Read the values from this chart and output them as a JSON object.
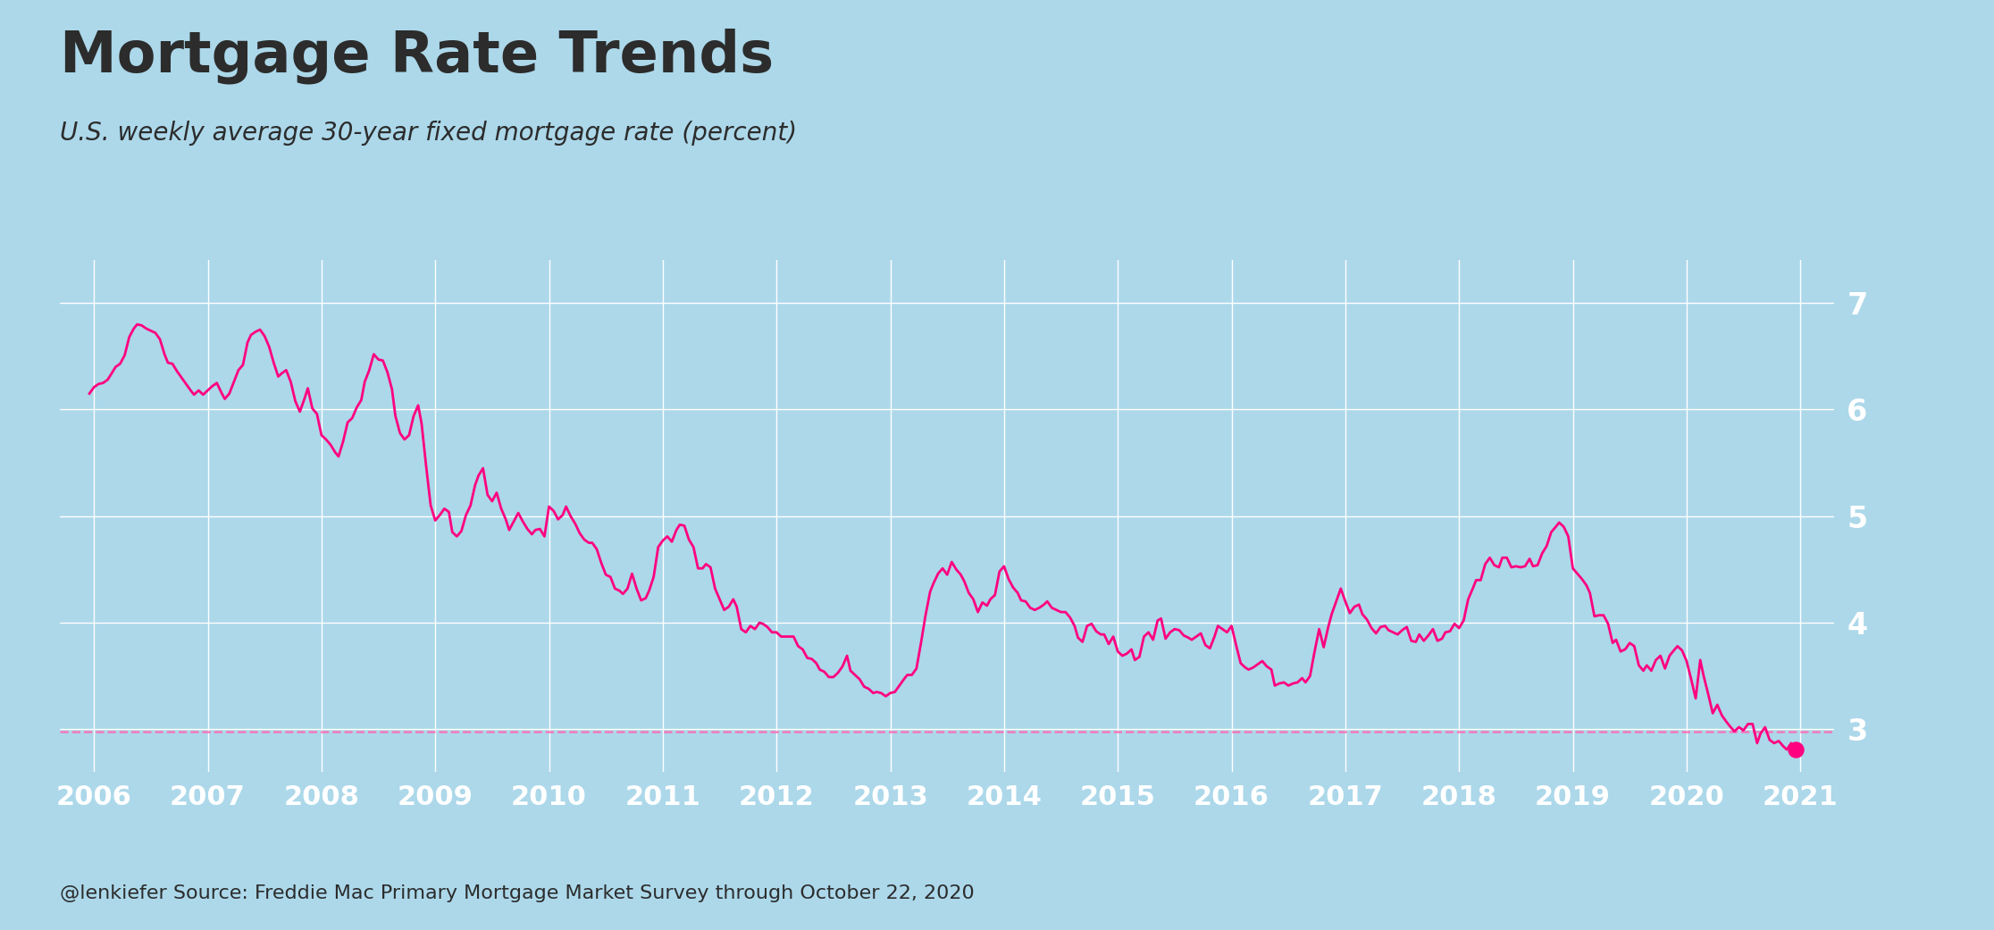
{
  "title": "Mortgage Rate Trends",
  "subtitle": "U.S. weekly average 30-year fixed mortgage rate (percent)",
  "caption": "@lenkiefer Source: Freddie Mac Primary Mortgage Market Survey through October 22, 2020",
  "background_color": "#ACD8EA",
  "plot_bg_color": "#ACD8EA",
  "line_color": "#FF0080",
  "dashed_color": "#FF69B4",
  "grid_color": "#FFFFFF",
  "title_color": "#2C2C2C",
  "axis_label_color": "#FFFFFF",
  "dashed_y": 2.98,
  "ylim": [
    2.6,
    7.4
  ],
  "xlim_start": 2005.7,
  "xlim_end": 2021.3,
  "yticks": [
    3,
    4,
    5,
    6,
    7
  ],
  "xticks": [
    2006,
    2007,
    2008,
    2009,
    2010,
    2011,
    2012,
    2013,
    2014,
    2015,
    2016,
    2017,
    2018,
    2019,
    2020,
    2021
  ],
  "pmms_data": [
    [
      2005.96,
      6.15
    ],
    [
      2006.0,
      6.21
    ],
    [
      2006.04,
      6.24
    ],
    [
      2006.08,
      6.25
    ],
    [
      2006.12,
      6.28
    ],
    [
      2006.15,
      6.33
    ],
    [
      2006.19,
      6.4
    ],
    [
      2006.23,
      6.43
    ],
    [
      2006.27,
      6.51
    ],
    [
      2006.31,
      6.68
    ],
    [
      2006.35,
      6.76
    ],
    [
      2006.38,
      6.8
    ],
    [
      2006.42,
      6.79
    ],
    [
      2006.46,
      6.76
    ],
    [
      2006.5,
      6.74
    ],
    [
      2006.54,
      6.72
    ],
    [
      2006.58,
      6.66
    ],
    [
      2006.62,
      6.52
    ],
    [
      2006.65,
      6.44
    ],
    [
      2006.69,
      6.43
    ],
    [
      2006.73,
      6.36
    ],
    [
      2006.77,
      6.3
    ],
    [
      2006.81,
      6.24
    ],
    [
      2006.85,
      6.18
    ],
    [
      2006.88,
      6.14
    ],
    [
      2006.92,
      6.18
    ],
    [
      2006.96,
      6.14
    ],
    [
      2007.0,
      6.18
    ],
    [
      2007.04,
      6.22
    ],
    [
      2007.08,
      6.25
    ],
    [
      2007.12,
      6.16
    ],
    [
      2007.15,
      6.1
    ],
    [
      2007.19,
      6.15
    ],
    [
      2007.23,
      6.26
    ],
    [
      2007.27,
      6.37
    ],
    [
      2007.31,
      6.42
    ],
    [
      2007.35,
      6.63
    ],
    [
      2007.38,
      6.7
    ],
    [
      2007.42,
      6.73
    ],
    [
      2007.46,
      6.75
    ],
    [
      2007.5,
      6.69
    ],
    [
      2007.54,
      6.59
    ],
    [
      2007.58,
      6.44
    ],
    [
      2007.62,
      6.31
    ],
    [
      2007.65,
      6.34
    ],
    [
      2007.69,
      6.37
    ],
    [
      2007.73,
      6.26
    ],
    [
      2007.77,
      6.08
    ],
    [
      2007.81,
      5.98
    ],
    [
      2007.85,
      6.1
    ],
    [
      2007.88,
      6.2
    ],
    [
      2007.92,
      6.01
    ],
    [
      2007.96,
      5.96
    ],
    [
      2008.0,
      5.76
    ],
    [
      2008.04,
      5.72
    ],
    [
      2008.08,
      5.67
    ],
    [
      2008.12,
      5.6
    ],
    [
      2008.15,
      5.56
    ],
    [
      2008.19,
      5.7
    ],
    [
      2008.23,
      5.88
    ],
    [
      2008.27,
      5.92
    ],
    [
      2008.31,
      6.02
    ],
    [
      2008.35,
      6.09
    ],
    [
      2008.38,
      6.26
    ],
    [
      2008.42,
      6.37
    ],
    [
      2008.46,
      6.52
    ],
    [
      2008.5,
      6.47
    ],
    [
      2008.54,
      6.46
    ],
    [
      2008.58,
      6.35
    ],
    [
      2008.62,
      6.19
    ],
    [
      2008.65,
      5.94
    ],
    [
      2008.69,
      5.78
    ],
    [
      2008.73,
      5.72
    ],
    [
      2008.77,
      5.76
    ],
    [
      2008.81,
      5.94
    ],
    [
      2008.85,
      6.04
    ],
    [
      2008.88,
      5.87
    ],
    [
      2008.92,
      5.47
    ],
    [
      2008.96,
      5.1
    ],
    [
      2009.0,
      4.96
    ],
    [
      2009.04,
      5.01
    ],
    [
      2009.08,
      5.07
    ],
    [
      2009.12,
      5.04
    ],
    [
      2009.15,
      4.85
    ],
    [
      2009.19,
      4.81
    ],
    [
      2009.23,
      4.86
    ],
    [
      2009.27,
      5.01
    ],
    [
      2009.31,
      5.1
    ],
    [
      2009.35,
      5.29
    ],
    [
      2009.38,
      5.38
    ],
    [
      2009.42,
      5.45
    ],
    [
      2009.46,
      5.2
    ],
    [
      2009.5,
      5.14
    ],
    [
      2009.54,
      5.22
    ],
    [
      2009.58,
      5.07
    ],
    [
      2009.62,
      4.97
    ],
    [
      2009.65,
      4.87
    ],
    [
      2009.69,
      4.95
    ],
    [
      2009.73,
      5.03
    ],
    [
      2009.77,
      4.95
    ],
    [
      2009.81,
      4.88
    ],
    [
      2009.85,
      4.83
    ],
    [
      2009.88,
      4.87
    ],
    [
      2009.92,
      4.88
    ],
    [
      2009.96,
      4.81
    ],
    [
      2010.0,
      5.09
    ],
    [
      2010.04,
      5.05
    ],
    [
      2010.08,
      4.97
    ],
    [
      2010.12,
      5.01
    ],
    [
      2010.15,
      5.09
    ],
    [
      2010.19,
      5.0
    ],
    [
      2010.23,
      4.93
    ],
    [
      2010.27,
      4.84
    ],
    [
      2010.31,
      4.78
    ],
    [
      2010.35,
      4.75
    ],
    [
      2010.38,
      4.75
    ],
    [
      2010.42,
      4.69
    ],
    [
      2010.46,
      4.56
    ],
    [
      2010.5,
      4.45
    ],
    [
      2010.54,
      4.43
    ],
    [
      2010.58,
      4.32
    ],
    [
      2010.62,
      4.3
    ],
    [
      2010.65,
      4.27
    ],
    [
      2010.69,
      4.32
    ],
    [
      2010.73,
      4.46
    ],
    [
      2010.77,
      4.32
    ],
    [
      2010.81,
      4.21
    ],
    [
      2010.85,
      4.23
    ],
    [
      2010.88,
      4.3
    ],
    [
      2010.92,
      4.43
    ],
    [
      2010.96,
      4.71
    ],
    [
      2011.0,
      4.77
    ],
    [
      2011.04,
      4.81
    ],
    [
      2011.08,
      4.76
    ],
    [
      2011.12,
      4.87
    ],
    [
      2011.15,
      4.92
    ],
    [
      2011.19,
      4.91
    ],
    [
      2011.23,
      4.78
    ],
    [
      2011.27,
      4.71
    ],
    [
      2011.31,
      4.51
    ],
    [
      2011.35,
      4.51
    ],
    [
      2011.38,
      4.55
    ],
    [
      2011.42,
      4.52
    ],
    [
      2011.46,
      4.32
    ],
    [
      2011.5,
      4.22
    ],
    [
      2011.54,
      4.12
    ],
    [
      2011.58,
      4.15
    ],
    [
      2011.62,
      4.22
    ],
    [
      2011.65,
      4.15
    ],
    [
      2011.69,
      3.94
    ],
    [
      2011.73,
      3.91
    ],
    [
      2011.77,
      3.97
    ],
    [
      2011.81,
      3.94
    ],
    [
      2011.85,
      4.0
    ],
    [
      2011.88,
      3.99
    ],
    [
      2011.92,
      3.96
    ],
    [
      2011.96,
      3.91
    ],
    [
      2012.0,
      3.91
    ],
    [
      2012.04,
      3.87
    ],
    [
      2012.08,
      3.87
    ],
    [
      2012.12,
      3.87
    ],
    [
      2012.15,
      3.87
    ],
    [
      2012.19,
      3.78
    ],
    [
      2012.23,
      3.75
    ],
    [
      2012.27,
      3.67
    ],
    [
      2012.31,
      3.66
    ],
    [
      2012.35,
      3.62
    ],
    [
      2012.38,
      3.56
    ],
    [
      2012.42,
      3.54
    ],
    [
      2012.46,
      3.49
    ],
    [
      2012.5,
      3.49
    ],
    [
      2012.54,
      3.53
    ],
    [
      2012.58,
      3.59
    ],
    [
      2012.62,
      3.69
    ],
    [
      2012.65,
      3.55
    ],
    [
      2012.69,
      3.51
    ],
    [
      2012.73,
      3.47
    ],
    [
      2012.77,
      3.4
    ],
    [
      2012.81,
      3.38
    ],
    [
      2012.85,
      3.34
    ],
    [
      2012.88,
      3.35
    ],
    [
      2012.92,
      3.34
    ],
    [
      2012.96,
      3.31
    ],
    [
      2013.0,
      3.34
    ],
    [
      2013.04,
      3.35
    ],
    [
      2013.08,
      3.41
    ],
    [
      2013.12,
      3.47
    ],
    [
      2013.15,
      3.51
    ],
    [
      2013.19,
      3.51
    ],
    [
      2013.23,
      3.57
    ],
    [
      2013.27,
      3.81
    ],
    [
      2013.31,
      4.07
    ],
    [
      2013.35,
      4.29
    ],
    [
      2013.38,
      4.37
    ],
    [
      2013.42,
      4.46
    ],
    [
      2013.46,
      4.51
    ],
    [
      2013.5,
      4.45
    ],
    [
      2013.54,
      4.57
    ],
    [
      2013.58,
      4.5
    ],
    [
      2013.62,
      4.45
    ],
    [
      2013.65,
      4.39
    ],
    [
      2013.69,
      4.28
    ],
    [
      2013.73,
      4.22
    ],
    [
      2013.77,
      4.1
    ],
    [
      2013.81,
      4.19
    ],
    [
      2013.85,
      4.16
    ],
    [
      2013.88,
      4.22
    ],
    [
      2013.92,
      4.26
    ],
    [
      2013.96,
      4.48
    ],
    [
      2014.0,
      4.53
    ],
    [
      2014.04,
      4.41
    ],
    [
      2014.08,
      4.33
    ],
    [
      2014.12,
      4.28
    ],
    [
      2014.15,
      4.21
    ],
    [
      2014.19,
      4.2
    ],
    [
      2014.23,
      4.14
    ],
    [
      2014.27,
      4.12
    ],
    [
      2014.31,
      4.14
    ],
    [
      2014.35,
      4.17
    ],
    [
      2014.38,
      4.2
    ],
    [
      2014.42,
      4.14
    ],
    [
      2014.46,
      4.12
    ],
    [
      2014.5,
      4.1
    ],
    [
      2014.54,
      4.1
    ],
    [
      2014.58,
      4.05
    ],
    [
      2014.62,
      3.97
    ],
    [
      2014.65,
      3.86
    ],
    [
      2014.69,
      3.82
    ],
    [
      2014.73,
      3.97
    ],
    [
      2014.77,
      3.99
    ],
    [
      2014.81,
      3.92
    ],
    [
      2014.85,
      3.89
    ],
    [
      2014.88,
      3.89
    ],
    [
      2014.92,
      3.8
    ],
    [
      2014.96,
      3.87
    ],
    [
      2015.0,
      3.73
    ],
    [
      2015.04,
      3.69
    ],
    [
      2015.08,
      3.71
    ],
    [
      2015.12,
      3.75
    ],
    [
      2015.15,
      3.65
    ],
    [
      2015.19,
      3.68
    ],
    [
      2015.23,
      3.87
    ],
    [
      2015.27,
      3.91
    ],
    [
      2015.31,
      3.84
    ],
    [
      2015.35,
      4.02
    ],
    [
      2015.38,
      4.04
    ],
    [
      2015.42,
      3.85
    ],
    [
      2015.46,
      3.91
    ],
    [
      2015.5,
      3.94
    ],
    [
      2015.54,
      3.93
    ],
    [
      2015.58,
      3.88
    ],
    [
      2015.62,
      3.86
    ],
    [
      2015.65,
      3.84
    ],
    [
      2015.69,
      3.87
    ],
    [
      2015.73,
      3.9
    ],
    [
      2015.77,
      3.79
    ],
    [
      2015.81,
      3.76
    ],
    [
      2015.85,
      3.87
    ],
    [
      2015.88,
      3.97
    ],
    [
      2015.92,
      3.94
    ],
    [
      2015.96,
      3.91
    ],
    [
      2016.0,
      3.97
    ],
    [
      2016.04,
      3.79
    ],
    [
      2016.08,
      3.62
    ],
    [
      2016.12,
      3.58
    ],
    [
      2016.15,
      3.56
    ],
    [
      2016.19,
      3.58
    ],
    [
      2016.23,
      3.61
    ],
    [
      2016.27,
      3.64
    ],
    [
      2016.31,
      3.59
    ],
    [
      2016.35,
      3.56
    ],
    [
      2016.38,
      3.41
    ],
    [
      2016.42,
      3.43
    ],
    [
      2016.46,
      3.44
    ],
    [
      2016.5,
      3.41
    ],
    [
      2016.54,
      3.43
    ],
    [
      2016.58,
      3.44
    ],
    [
      2016.62,
      3.48
    ],
    [
      2016.65,
      3.44
    ],
    [
      2016.69,
      3.5
    ],
    [
      2016.73,
      3.73
    ],
    [
      2016.77,
      3.94
    ],
    [
      2016.81,
      3.77
    ],
    [
      2016.85,
      3.96
    ],
    [
      2016.88,
      4.08
    ],
    [
      2016.92,
      4.2
    ],
    [
      2016.96,
      4.32
    ],
    [
      2017.0,
      4.2
    ],
    [
      2017.04,
      4.09
    ],
    [
      2017.08,
      4.15
    ],
    [
      2017.12,
      4.17
    ],
    [
      2017.15,
      4.08
    ],
    [
      2017.19,
      4.03
    ],
    [
      2017.23,
      3.95
    ],
    [
      2017.27,
      3.9
    ],
    [
      2017.31,
      3.96
    ],
    [
      2017.35,
      3.97
    ],
    [
      2017.38,
      3.93
    ],
    [
      2017.42,
      3.91
    ],
    [
      2017.46,
      3.89
    ],
    [
      2017.5,
      3.93
    ],
    [
      2017.54,
      3.96
    ],
    [
      2017.58,
      3.83
    ],
    [
      2017.62,
      3.82
    ],
    [
      2017.65,
      3.89
    ],
    [
      2017.69,
      3.83
    ],
    [
      2017.73,
      3.88
    ],
    [
      2017.77,
      3.94
    ],
    [
      2017.81,
      3.83
    ],
    [
      2017.85,
      3.85
    ],
    [
      2017.88,
      3.91
    ],
    [
      2017.92,
      3.92
    ],
    [
      2017.96,
      3.99
    ],
    [
      2018.0,
      3.95
    ],
    [
      2018.04,
      4.02
    ],
    [
      2018.08,
      4.22
    ],
    [
      2018.12,
      4.32
    ],
    [
      2018.15,
      4.4
    ],
    [
      2018.19,
      4.4
    ],
    [
      2018.23,
      4.55
    ],
    [
      2018.27,
      4.61
    ],
    [
      2018.31,
      4.54
    ],
    [
      2018.35,
      4.52
    ],
    [
      2018.38,
      4.61
    ],
    [
      2018.42,
      4.61
    ],
    [
      2018.46,
      4.52
    ],
    [
      2018.5,
      4.53
    ],
    [
      2018.54,
      4.52
    ],
    [
      2018.58,
      4.53
    ],
    [
      2018.62,
      4.6
    ],
    [
      2018.65,
      4.53
    ],
    [
      2018.69,
      4.54
    ],
    [
      2018.73,
      4.65
    ],
    [
      2018.77,
      4.72
    ],
    [
      2018.81,
      4.85
    ],
    [
      2018.85,
      4.9
    ],
    [
      2018.88,
      4.94
    ],
    [
      2018.92,
      4.9
    ],
    [
      2018.96,
      4.81
    ],
    [
      2019.0,
      4.51
    ],
    [
      2019.04,
      4.46
    ],
    [
      2019.08,
      4.41
    ],
    [
      2019.12,
      4.35
    ],
    [
      2019.15,
      4.28
    ],
    [
      2019.19,
      4.06
    ],
    [
      2019.23,
      4.07
    ],
    [
      2019.27,
      4.07
    ],
    [
      2019.31,
      3.99
    ],
    [
      2019.35,
      3.81
    ],
    [
      2019.38,
      3.84
    ],
    [
      2019.42,
      3.73
    ],
    [
      2019.46,
      3.75
    ],
    [
      2019.5,
      3.81
    ],
    [
      2019.54,
      3.78
    ],
    [
      2019.58,
      3.6
    ],
    [
      2019.62,
      3.55
    ],
    [
      2019.65,
      3.6
    ],
    [
      2019.69,
      3.55
    ],
    [
      2019.73,
      3.65
    ],
    [
      2019.77,
      3.69
    ],
    [
      2019.81,
      3.57
    ],
    [
      2019.85,
      3.69
    ],
    [
      2019.88,
      3.73
    ],
    [
      2019.92,
      3.78
    ],
    [
      2019.96,
      3.74
    ],
    [
      2020.0,
      3.64
    ],
    [
      2020.04,
      3.47
    ],
    [
      2020.08,
      3.29
    ],
    [
      2020.12,
      3.65
    ],
    [
      2020.15,
      3.5
    ],
    [
      2020.19,
      3.33
    ],
    [
      2020.23,
      3.15
    ],
    [
      2020.27,
      3.23
    ],
    [
      2020.31,
      3.13
    ],
    [
      2020.35,
      3.07
    ],
    [
      2020.38,
      3.03
    ],
    [
      2020.42,
      2.98
    ],
    [
      2020.46,
      3.02
    ],
    [
      2020.5,
      2.99
    ],
    [
      2020.54,
      3.05
    ],
    [
      2020.58,
      3.05
    ],
    [
      2020.62,
      2.87
    ],
    [
      2020.65,
      2.96
    ],
    [
      2020.69,
      3.02
    ],
    [
      2020.73,
      2.9
    ],
    [
      2020.77,
      2.87
    ],
    [
      2020.81,
      2.89
    ],
    [
      2020.85,
      2.84
    ],
    [
      2020.88,
      2.81
    ],
    [
      2020.92,
      2.87
    ],
    [
      2020.96,
      2.81
    ]
  ]
}
